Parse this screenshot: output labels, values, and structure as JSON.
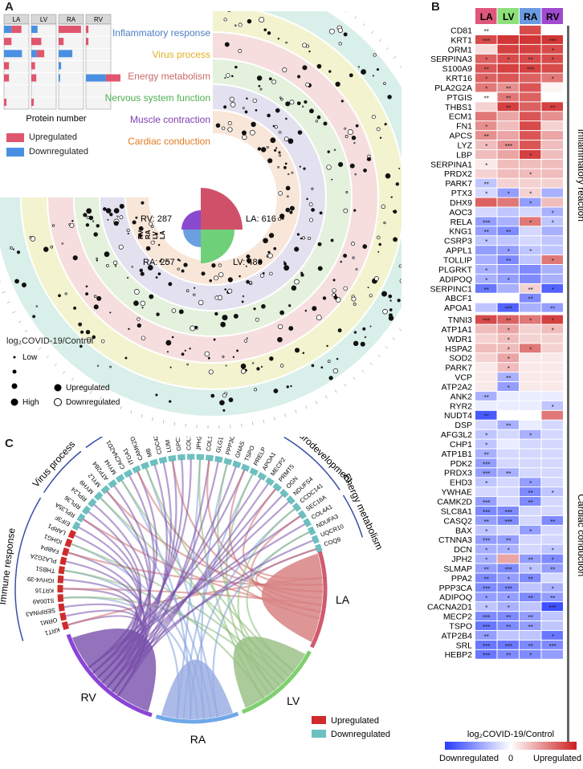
{
  "panels": {
    "a": "A",
    "b": "B",
    "c": "C"
  },
  "bar_panel": {
    "chambers": [
      "LA",
      "LV",
      "RA",
      "RV"
    ],
    "xlabel": "Protein number",
    "legend": [
      {
        "label": "Upregulated",
        "color": "#e0566e"
      },
      {
        "label": "Downregulated",
        "color": "#4a90e2"
      }
    ],
    "bars": [
      [
        [
          0.4,
          0.3
        ],
        [
          0.3,
          0.0
        ],
        [
          0.0,
          0.72
        ],
        [
          0.2,
          0.0
        ],
        [
          0.2,
          0.0
        ],
        [
          0.0,
          0.0
        ],
        [
          0.1,
          0.0
        ]
      ],
      [
        [
          0.0,
          0.25
        ],
        [
          0.4,
          0.0
        ],
        [
          0.3,
          0.22
        ],
        [
          0.15,
          0.0
        ],
        [
          0.2,
          0.0
        ],
        [
          0.0,
          0.0
        ],
        [
          0.1,
          0.0
        ]
      ],
      [
        [
          0.9,
          0.0
        ],
        [
          0.2,
          0.0
        ],
        [
          0.0,
          0.55
        ],
        [
          0.0,
          0.1
        ],
        [
          0.0,
          0.06
        ],
        [
          0.0,
          0.0
        ],
        [
          0.0,
          0.0
        ]
      ],
      [
        [
          0.1,
          0.0
        ],
        [
          0.1,
          0.0
        ],
        [
          0.0,
          0.0
        ],
        [
          0.0,
          0.0
        ],
        [
          0.6,
          0.8
        ],
        [
          0.0,
          0.0
        ],
        [
          0.0,
          0.0
        ]
      ]
    ]
  },
  "circos": {
    "categories": [
      {
        "label": "Inflammatory response",
        "color": "#4a7fc1",
        "ring": "#d9efe9"
      },
      {
        "label": "Virus process",
        "color": "#e0b020",
        "ring": "#f3f4cf"
      },
      {
        "label": "Energy metabolism",
        "color": "#c96a6a",
        "ring": "#f6dede"
      },
      {
        "label": "Nervous system function",
        "color": "#4caf50",
        "ring": "#e4f1dc"
      },
      {
        "label": "Muscle contraction",
        "color": "#8040b0",
        "ring": "#e3e0f0"
      },
      {
        "label": "Cardiac conduction",
        "color": "#e07a20",
        "ring": "#f8e6d8"
      }
    ],
    "counts": [
      {
        "label": "LA: 616",
        "color": "#d0506a"
      },
      {
        "label": "LV: 486",
        "color": "#6fd07a"
      },
      {
        "label": "RA: 257",
        "color": "#6aa0e0"
      },
      {
        "label": "RV: 287",
        "color": "#8a4ad0"
      }
    ],
    "axis_labels": [
      "RV",
      "RA",
      "LV",
      "LA"
    ],
    "legend_title": "log₂COVID-19/Control",
    "legend": {
      "low": "Low",
      "high": "High",
      "up": "Upregulated",
      "down": "Downregulated"
    }
  },
  "heatmap": {
    "columns": [
      {
        "label": "LA",
        "color": "#e0567a"
      },
      {
        "label": "LV",
        "color": "#8de07a"
      },
      {
        "label": "RA",
        "color": "#6a9ae0"
      },
      {
        "label": "RV",
        "color": "#a04ad0"
      }
    ],
    "groups": [
      {
        "label": "Inflammatory reaction",
        "start": 0,
        "end": 30
      },
      {
        "label": "Cardiac conduction",
        "start": 31,
        "end": 74
      }
    ],
    "rows": [
      {
        "g": "CD81",
        "v": [
          0,
          0,
          0.8,
          0
        ],
        "s": [
          "**",
          "",
          "",
          ""
        ]
      },
      {
        "g": "KRT1",
        "v": [
          0.8,
          0.9,
          0.9,
          0.9
        ],
        "s": [
          "***",
          "",
          "",
          "***"
        ]
      },
      {
        "g": "ORM1",
        "v": [
          0.15,
          0.85,
          0.85,
          0.8
        ],
        "s": [
          "",
          "",
          "",
          "*"
        ]
      },
      {
        "g": "SERPINA3",
        "v": [
          0.7,
          0.8,
          0.8,
          0.8
        ],
        "s": [
          "*",
          "*",
          "**",
          "*"
        ]
      },
      {
        "g": "S100A9",
        "v": [
          0.75,
          0.85,
          0.85,
          0.8
        ],
        "s": [
          "**",
          "",
          "***",
          ""
        ]
      },
      {
        "g": "KRT16",
        "v": [
          0.7,
          0.75,
          0.7,
          0.6
        ],
        "s": [
          "*",
          "",
          "",
          "*"
        ]
      },
      {
        "g": "PLA2G2A",
        "v": [
          0.6,
          0.5,
          0.75,
          0.05
        ],
        "s": [
          "*",
          "**",
          "",
          ""
        ]
      },
      {
        "g": "PTGIS",
        "v": [
          0,
          0.6,
          0.7,
          0
        ],
        "s": [
          "**",
          "**",
          "",
          ""
        ]
      },
      {
        "g": "THBS1",
        "v": [
          0.2,
          0.85,
          0.7,
          0.85
        ],
        "s": [
          "",
          "**",
          "",
          "**"
        ]
      },
      {
        "g": "ECM1",
        "v": [
          0.6,
          0.4,
          0.75,
          0.5
        ],
        "s": [
          "",
          "",
          "",
          ""
        ]
      },
      {
        "g": "FN1",
        "v": [
          0.5,
          0.3,
          0.8,
          0.2
        ],
        "s": [
          "*",
          "",
          "",
          ""
        ]
      },
      {
        "g": "APCS",
        "v": [
          0.5,
          0.4,
          0.75,
          0.4
        ],
        "s": [
          "**",
          "",
          "",
          ""
        ]
      },
      {
        "g": "LYZ",
        "v": [
          0.3,
          0.5,
          0.75,
          0.3
        ],
        "s": [
          "*",
          "***",
          "",
          ""
        ]
      },
      {
        "g": "LBP",
        "v": [
          0.3,
          0.4,
          0.85,
          0.3
        ],
        "s": [
          "",
          "",
          "*",
          ""
        ]
      },
      {
        "g": "SERPINA1",
        "v": [
          0.1,
          0.3,
          0.3,
          0.3
        ],
        "s": [
          "*",
          "",
          "",
          ""
        ]
      },
      {
        "g": "PRDX2",
        "v": [
          0.2,
          0.3,
          0.3,
          0.3
        ],
        "s": [
          "",
          "",
          "*",
          ""
        ]
      },
      {
        "g": "PARK7",
        "v": [
          -0.3,
          0.2,
          0.2,
          0.2
        ],
        "s": [
          "**",
          "",
          "",
          ""
        ]
      },
      {
        "g": "PTX3",
        "v": [
          -0.2,
          -0.5,
          0.2,
          -0.4
        ],
        "s": [
          "*",
          "*",
          "*",
          ""
        ]
      },
      {
        "g": "DHX9",
        "v": [
          0.7,
          0.6,
          -0.5,
          0.3
        ],
        "s": [
          "",
          "",
          "*",
          ""
        ]
      },
      {
        "g": "AOC3",
        "v": [
          -0.2,
          -0.3,
          -0.2,
          -0.4
        ],
        "s": [
          "",
          "",
          "",
          "*"
        ]
      },
      {
        "g": "RELA",
        "v": [
          -0.5,
          -0.4,
          0.6,
          -0.3
        ],
        "s": [
          "***",
          "",
          "*",
          "*"
        ]
      },
      {
        "g": "KNG1",
        "v": [
          -0.5,
          -0.6,
          -0.2,
          -0.4
        ],
        "s": [
          "**",
          "**",
          "",
          ""
        ]
      },
      {
        "g": "CSRP3",
        "v": [
          -0.3,
          -0.3,
          -0.2,
          -0.3
        ],
        "s": [
          "*",
          "",
          "",
          ""
        ]
      },
      {
        "g": "APPL1",
        "v": [
          -0.5,
          -0.5,
          -0.3,
          -0.3
        ],
        "s": [
          "",
          "*",
          "*",
          ""
        ]
      },
      {
        "g": "TOLLIP",
        "v": [
          -0.4,
          -0.6,
          -0.3,
          0.6
        ],
        "s": [
          "",
          "**",
          "",
          "*"
        ]
      },
      {
        "g": "PLGRKT",
        "v": [
          -0.4,
          -0.5,
          -0.6,
          -0.4
        ],
        "s": [
          "*",
          "",
          "",
          ""
        ]
      },
      {
        "g": "ADIPOQ",
        "v": [
          -0.4,
          -0.5,
          -0.6,
          -0.4
        ],
        "s": [
          "*",
          "*",
          "",
          ""
        ]
      },
      {
        "g": "SERPINC1",
        "v": [
          -0.7,
          -0.4,
          0.2,
          -0.8
        ],
        "s": [
          "**",
          "",
          "**",
          "*"
        ]
      },
      {
        "g": "ABCF1",
        "v": [
          0,
          0,
          -0.6,
          0
        ],
        "s": [
          "",
          "",
          "**",
          ""
        ]
      },
      {
        "g": "APOA1",
        "v": [
          -0.3,
          -0.8,
          -0.4,
          -0.5
        ],
        "s": [
          "",
          "***",
          "",
          "**"
        ]
      },
      {
        "g": "TNNI3",
        "v": [
          0.8,
          0.7,
          0.6,
          0.85
        ],
        "s": [
          "***",
          "**",
          "*",
          "*"
        ]
      },
      {
        "g": "ATP1A1",
        "v": [
          0.3,
          0.4,
          0.2,
          0.3
        ],
        "s": [
          "",
          "*",
          "",
          "*"
        ]
      },
      {
        "g": "WDR1",
        "v": [
          0.2,
          0.3,
          0.2,
          0.2
        ],
        "s": [
          "",
          "*",
          "",
          ""
        ]
      },
      {
        "g": "HSPA2",
        "v": [
          0.3,
          0.3,
          0.6,
          0.2
        ],
        "s": [
          "",
          "*",
          "*",
          ""
        ]
      },
      {
        "g": "SOD2",
        "v": [
          0.2,
          0.4,
          0.1,
          0.1
        ],
        "s": [
          "",
          "*",
          "",
          ""
        ]
      },
      {
        "g": "PARK7",
        "v": [
          0.1,
          0.3,
          0.1,
          0.1
        ],
        "s": [
          "",
          "*",
          "",
          ""
        ]
      },
      {
        "g": "VCP",
        "v": [
          0.1,
          -0.4,
          0.1,
          0.1
        ],
        "s": [
          "",
          "**",
          "",
          ""
        ]
      },
      {
        "g": "ATP2A2",
        "v": [
          0.1,
          -0.5,
          0.1,
          0.1
        ],
        "s": [
          "",
          "*",
          "",
          ""
        ]
      },
      {
        "g": "ANK2",
        "v": [
          -0.4,
          -0.1,
          -0.1,
          -0.1
        ],
        "s": [
          "**",
          "",
          "",
          ""
        ]
      },
      {
        "g": "RYR2",
        "v": [
          -0.1,
          -0.1,
          -0.1,
          -0.3
        ],
        "s": [
          "",
          "",
          "",
          "*"
        ]
      },
      {
        "g": "NUDT4",
        "v": [
          -0.85,
          0,
          0,
          0.6
        ],
        "s": [
          "**",
          "",
          "",
          ""
        ]
      },
      {
        "g": "DSP",
        "v": [
          -0.2,
          -0.4,
          -0.1,
          -0.2
        ],
        "s": [
          "",
          "**",
          "",
          ""
        ]
      },
      {
        "g": "AFG3L2",
        "v": [
          -0.3,
          -0.2,
          -0.4,
          -0.2
        ],
        "s": [
          "*",
          "",
          "*",
          ""
        ]
      },
      {
        "g": "CHP1",
        "v": [
          -0.3,
          -0.1,
          -0.2,
          -0.2
        ],
        "s": [
          "*",
          "",
          "",
          ""
        ]
      },
      {
        "g": "ATP1B1",
        "v": [
          -0.4,
          -0.2,
          -0.2,
          -0.2
        ],
        "s": [
          "**",
          "",
          "",
          ""
        ]
      },
      {
        "g": "PDK2",
        "v": [
          -0.5,
          -0.2,
          -0.2,
          -0.2
        ],
        "s": [
          "***",
          "",
          "",
          ""
        ]
      },
      {
        "g": "PRDX3",
        "v": [
          -0.5,
          -0.4,
          -0.2,
          -0.2
        ],
        "s": [
          "***",
          "**",
          "",
          ""
        ]
      },
      {
        "g": "EHD3",
        "v": [
          -0.3,
          -0.2,
          -0.5,
          -0.2
        ],
        "s": [
          "*",
          "",
          "*",
          ""
        ]
      },
      {
        "g": "YWHAE",
        "v": [
          -0.2,
          -0.2,
          -0.6,
          -0.3
        ],
        "s": [
          "",
          "",
          "**",
          "*"
        ]
      },
      {
        "g": "CAMK2D",
        "v": [
          -0.5,
          -0.2,
          -0.6,
          -0.2
        ],
        "s": [
          "***",
          "",
          "**",
          ""
        ]
      },
      {
        "g": "SLC8A1",
        "v": [
          -0.6,
          -0.6,
          -0.2,
          -0.2
        ],
        "s": [
          "***",
          "***",
          "",
          ""
        ]
      },
      {
        "g": "CASQ2",
        "v": [
          -0.5,
          -0.6,
          -0.2,
          -0.6
        ],
        "s": [
          "**",
          "***",
          "",
          "**"
        ]
      },
      {
        "g": "BAX",
        "v": [
          -0.3,
          -0.2,
          -0.5,
          -0.2
        ],
        "s": [
          "*",
          "",
          "*",
          ""
        ]
      },
      {
        "g": "CTNNA3",
        "v": [
          -0.5,
          -0.5,
          -0.2,
          -0.2
        ],
        "s": [
          "***",
          "**",
          "",
          ""
        ]
      },
      {
        "g": "DCN",
        "v": [
          -0.4,
          -0.4,
          -0.2,
          -0.3
        ],
        "s": [
          "*",
          "*",
          "",
          "*"
        ]
      },
      {
        "g": "JPH2",
        "v": [
          -0.4,
          0.4,
          -0.5,
          -0.6
        ],
        "s": [
          "*",
          "",
          "**",
          "*"
        ]
      },
      {
        "g": "SLMAP",
        "v": [
          -0.5,
          -0.6,
          -0.3,
          -0.5
        ],
        "s": [
          "**",
          "***",
          "*",
          "**"
        ]
      },
      {
        "g": "PPA2",
        "v": [
          -0.6,
          -0.5,
          -0.6,
          -0.2
        ],
        "s": [
          "**",
          "*",
          "**",
          ""
        ]
      },
      {
        "g": "PPP3CA",
        "v": [
          -0.6,
          -0.6,
          -0.3,
          -0.4
        ],
        "s": [
          "***",
          "***",
          "",
          "*"
        ]
      },
      {
        "g": "ADIPOQ",
        "v": [
          -0.5,
          -0.5,
          -0.6,
          -0.5
        ],
        "s": [
          "*",
          "*",
          "**",
          "**"
        ]
      },
      {
        "g": "CACNA2D1",
        "v": [
          -0.3,
          -0.4,
          -0.3,
          -0.9
        ],
        "s": [
          "*",
          "*",
          "",
          "***"
        ]
      },
      {
        "g": "MECP2",
        "v": [
          -0.6,
          -0.6,
          -0.5,
          -0.3
        ],
        "s": [
          "***",
          "**",
          "**",
          ""
        ]
      },
      {
        "g": "TSPO",
        "v": [
          -0.7,
          -0.6,
          -0.5,
          -0.3
        ],
        "s": [
          "***",
          "**",
          "**",
          ""
        ]
      },
      {
        "g": "ATP2B4",
        "v": [
          -0.5,
          -0.3,
          -0.3,
          -0.7
        ],
        "s": [
          "**",
          "",
          "",
          "*"
        ]
      },
      {
        "g": "SRL",
        "v": [
          -0.7,
          -0.7,
          -0.6,
          -0.6
        ],
        "s": [
          "***",
          "***",
          "**",
          "***"
        ]
      },
      {
        "g": "HEBP2",
        "v": [
          -0.7,
          -0.6,
          -0.6,
          -0.5
        ],
        "s": [
          "***",
          "**",
          "*",
          ""
        ]
      }
    ],
    "legend_title": "log₂COVID-19/Control",
    "legend": {
      "low": "Downregulated",
      "mid": "0",
      "high": "Upregulated"
    }
  },
  "chord": {
    "categories": [
      {
        "label": "Immune response"
      },
      {
        "label": "Virus process"
      },
      {
        "label": "Cardiac contraction"
      },
      {
        "label": "Myocardial development"
      },
      {
        "label": "Neurodevelopment"
      },
      {
        "label": "Energy metabolism"
      }
    ],
    "genes": [
      "KRT1",
      "ORM1",
      "SERPINA3",
      "S100A9",
      "KRT16",
      "IGHV4-39",
      "THBS1",
      "PLA2G2A",
      "FABP4",
      "IGHG1",
      "LARP1",
      "EIF3F",
      "RPL35A",
      "RPL36",
      "RPL24",
      "MYH9",
      "MYL2",
      "ATP2B4",
      "MYH4",
      "CACNA2D1",
      "ITGA1",
      "CAMK2D",
      "MB",
      "CDC42",
      "LUM",
      "GPC1",
      "COL1A1",
      "JPH2",
      "COL3A1",
      "GLG1",
      "PPP3CA",
      "GNAS",
      "TSPO",
      "PRELP",
      "APOA1",
      "MECP2",
      "PRMT5",
      "OGN",
      "NDUFS4",
      "CCDC141",
      "SEC16A",
      "COL4A1",
      "NDUFA3",
      "UQCR10",
      "COQ9"
    ],
    "chambers": [
      {
        "label": "RV",
        "color": "#8a44d6"
      },
      {
        "label": "RA",
        "color": "#6fa8e8"
      },
      {
        "label": "LV",
        "color": "#7ed06e"
      },
      {
        "label": "LA",
        "color": "#d05a6e"
      }
    ],
    "legend": [
      {
        "label": "Upregulated",
        "color": "#d02a2a"
      },
      {
        "label": "Downregulated",
        "color": "#6cc0c0"
      }
    ]
  }
}
